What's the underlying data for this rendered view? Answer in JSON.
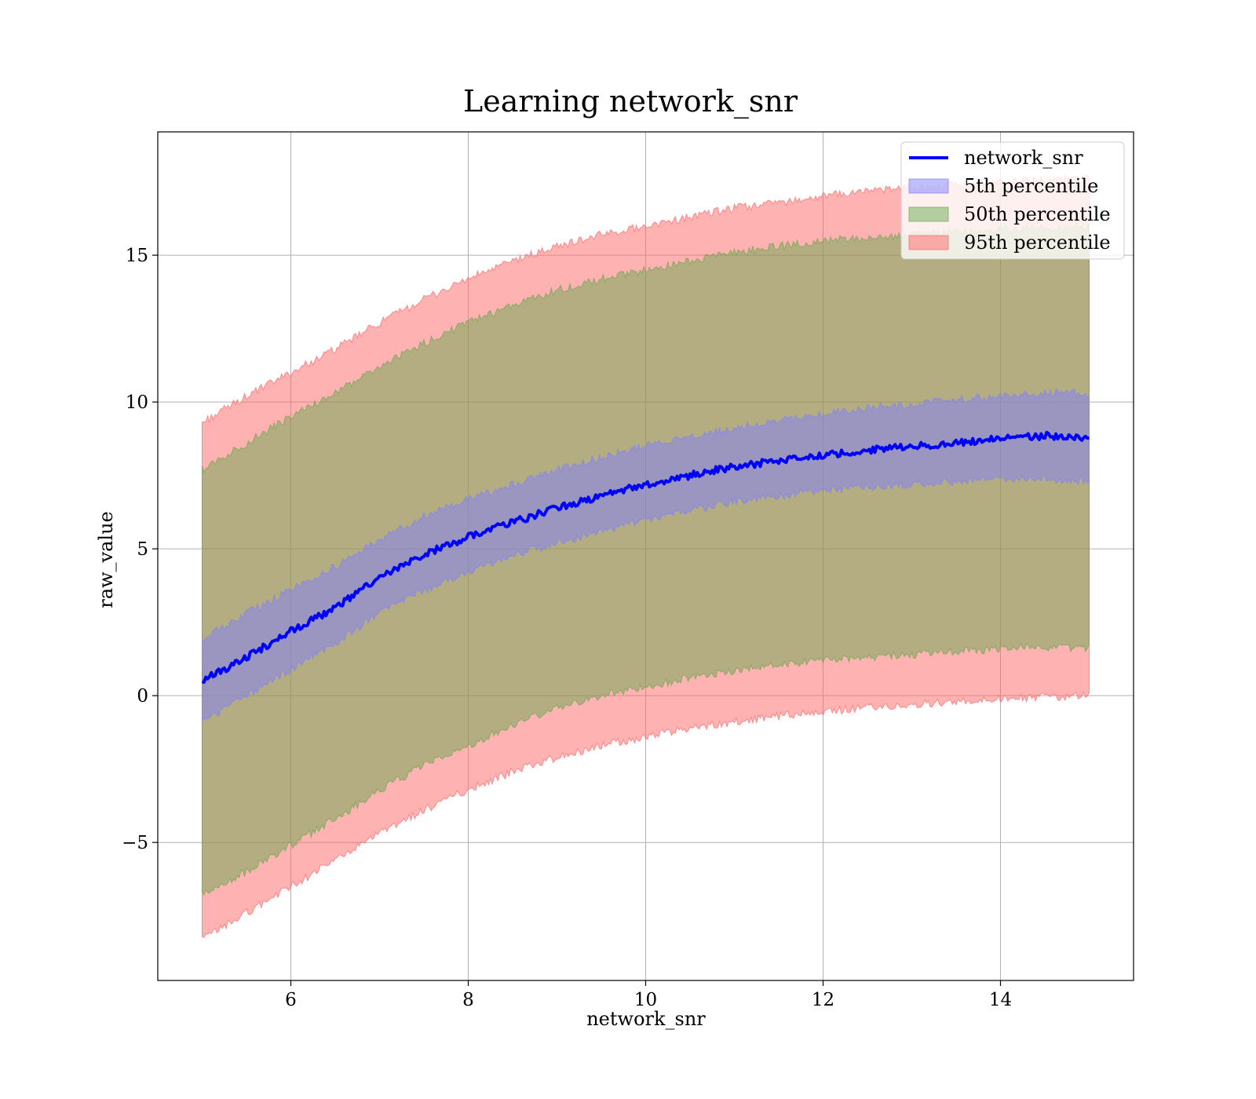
{
  "chart_data": {
    "type": "area",
    "title": "Learning network_snr",
    "xlabel": "network_snr",
    "ylabel": "raw_value",
    "xlim": [
      4.5,
      15.5
    ],
    "ylim": [
      -9.7,
      19.2
    ],
    "xticks": [
      6,
      8,
      10,
      12,
      14
    ],
    "yticks": [
      -5,
      0,
      5,
      10,
      15
    ],
    "xtick_labels": [
      "6",
      "8",
      "10",
      "12",
      "14"
    ],
    "ytick_labels": [
      "−5",
      "0",
      "5",
      "10",
      "15"
    ],
    "grid": true,
    "legend_position": "top-right",
    "x": [
      5,
      5.5,
      6,
      6.5,
      7,
      7.5,
      8,
      8.5,
      9,
      9.5,
      10,
      10.5,
      11,
      11.5,
      12,
      12.5,
      13,
      13.5,
      14,
      14.5,
      15
    ],
    "series": [
      {
        "name": "network_snr",
        "kind": "line",
        "color": "#0000ff",
        "values": [
          0.5,
          1.3,
          2.2,
          3.0,
          4.0,
          4.8,
          5.4,
          5.9,
          6.4,
          6.8,
          7.2,
          7.5,
          7.8,
          8.0,
          8.2,
          8.35,
          8.5,
          8.6,
          8.75,
          8.85,
          8.75
        ]
      },
      {
        "name": "5th percentile",
        "kind": "band",
        "color": "#8080ff",
        "lower": [
          -0.9,
          0.0,
          0.9,
          1.8,
          2.8,
          3.6,
          4.2,
          4.8,
          5.2,
          5.6,
          6.0,
          6.3,
          6.6,
          6.8,
          7.0,
          7.1,
          7.2,
          7.3,
          7.4,
          7.4,
          7.3
        ],
        "upper": [
          1.9,
          2.8,
          3.6,
          4.4,
          5.3,
          6.1,
          6.7,
          7.2,
          7.7,
          8.1,
          8.5,
          8.8,
          9.1,
          9.4,
          9.6,
          9.8,
          9.9,
          10.1,
          10.2,
          10.3,
          10.3
        ]
      },
      {
        "name": "50th percentile",
        "kind": "band",
        "color": "#6aa84f",
        "lower": [
          -6.8,
          -6.0,
          -5.1,
          -4.2,
          -3.2,
          -2.4,
          -1.7,
          -1.0,
          -0.4,
          0.0,
          0.3,
          0.6,
          0.85,
          1.05,
          1.2,
          1.3,
          1.4,
          1.5,
          1.6,
          1.65,
          1.6
        ],
        "upper": [
          7.7,
          8.6,
          9.5,
          10.3,
          11.2,
          12.0,
          12.7,
          13.3,
          13.8,
          14.2,
          14.5,
          14.8,
          15.1,
          15.3,
          15.5,
          15.6,
          15.7,
          15.8,
          15.9,
          15.9,
          16.0
        ]
      },
      {
        "name": "95th percentile",
        "kind": "band",
        "color": "#ff6666",
        "lower": [
          -8.3,
          -7.4,
          -6.5,
          -5.6,
          -4.7,
          -3.9,
          -3.2,
          -2.6,
          -2.1,
          -1.7,
          -1.4,
          -1.1,
          -0.9,
          -0.7,
          -0.55,
          -0.4,
          -0.3,
          -0.2,
          -0.1,
          -0.05,
          0.0
        ],
        "upper": [
          9.3,
          10.2,
          11.0,
          11.8,
          12.7,
          13.5,
          14.2,
          14.8,
          15.3,
          15.7,
          16.0,
          16.3,
          16.6,
          16.8,
          17.0,
          17.2,
          17.3,
          17.4,
          17.5,
          17.6,
          17.6
        ]
      }
    ]
  }
}
